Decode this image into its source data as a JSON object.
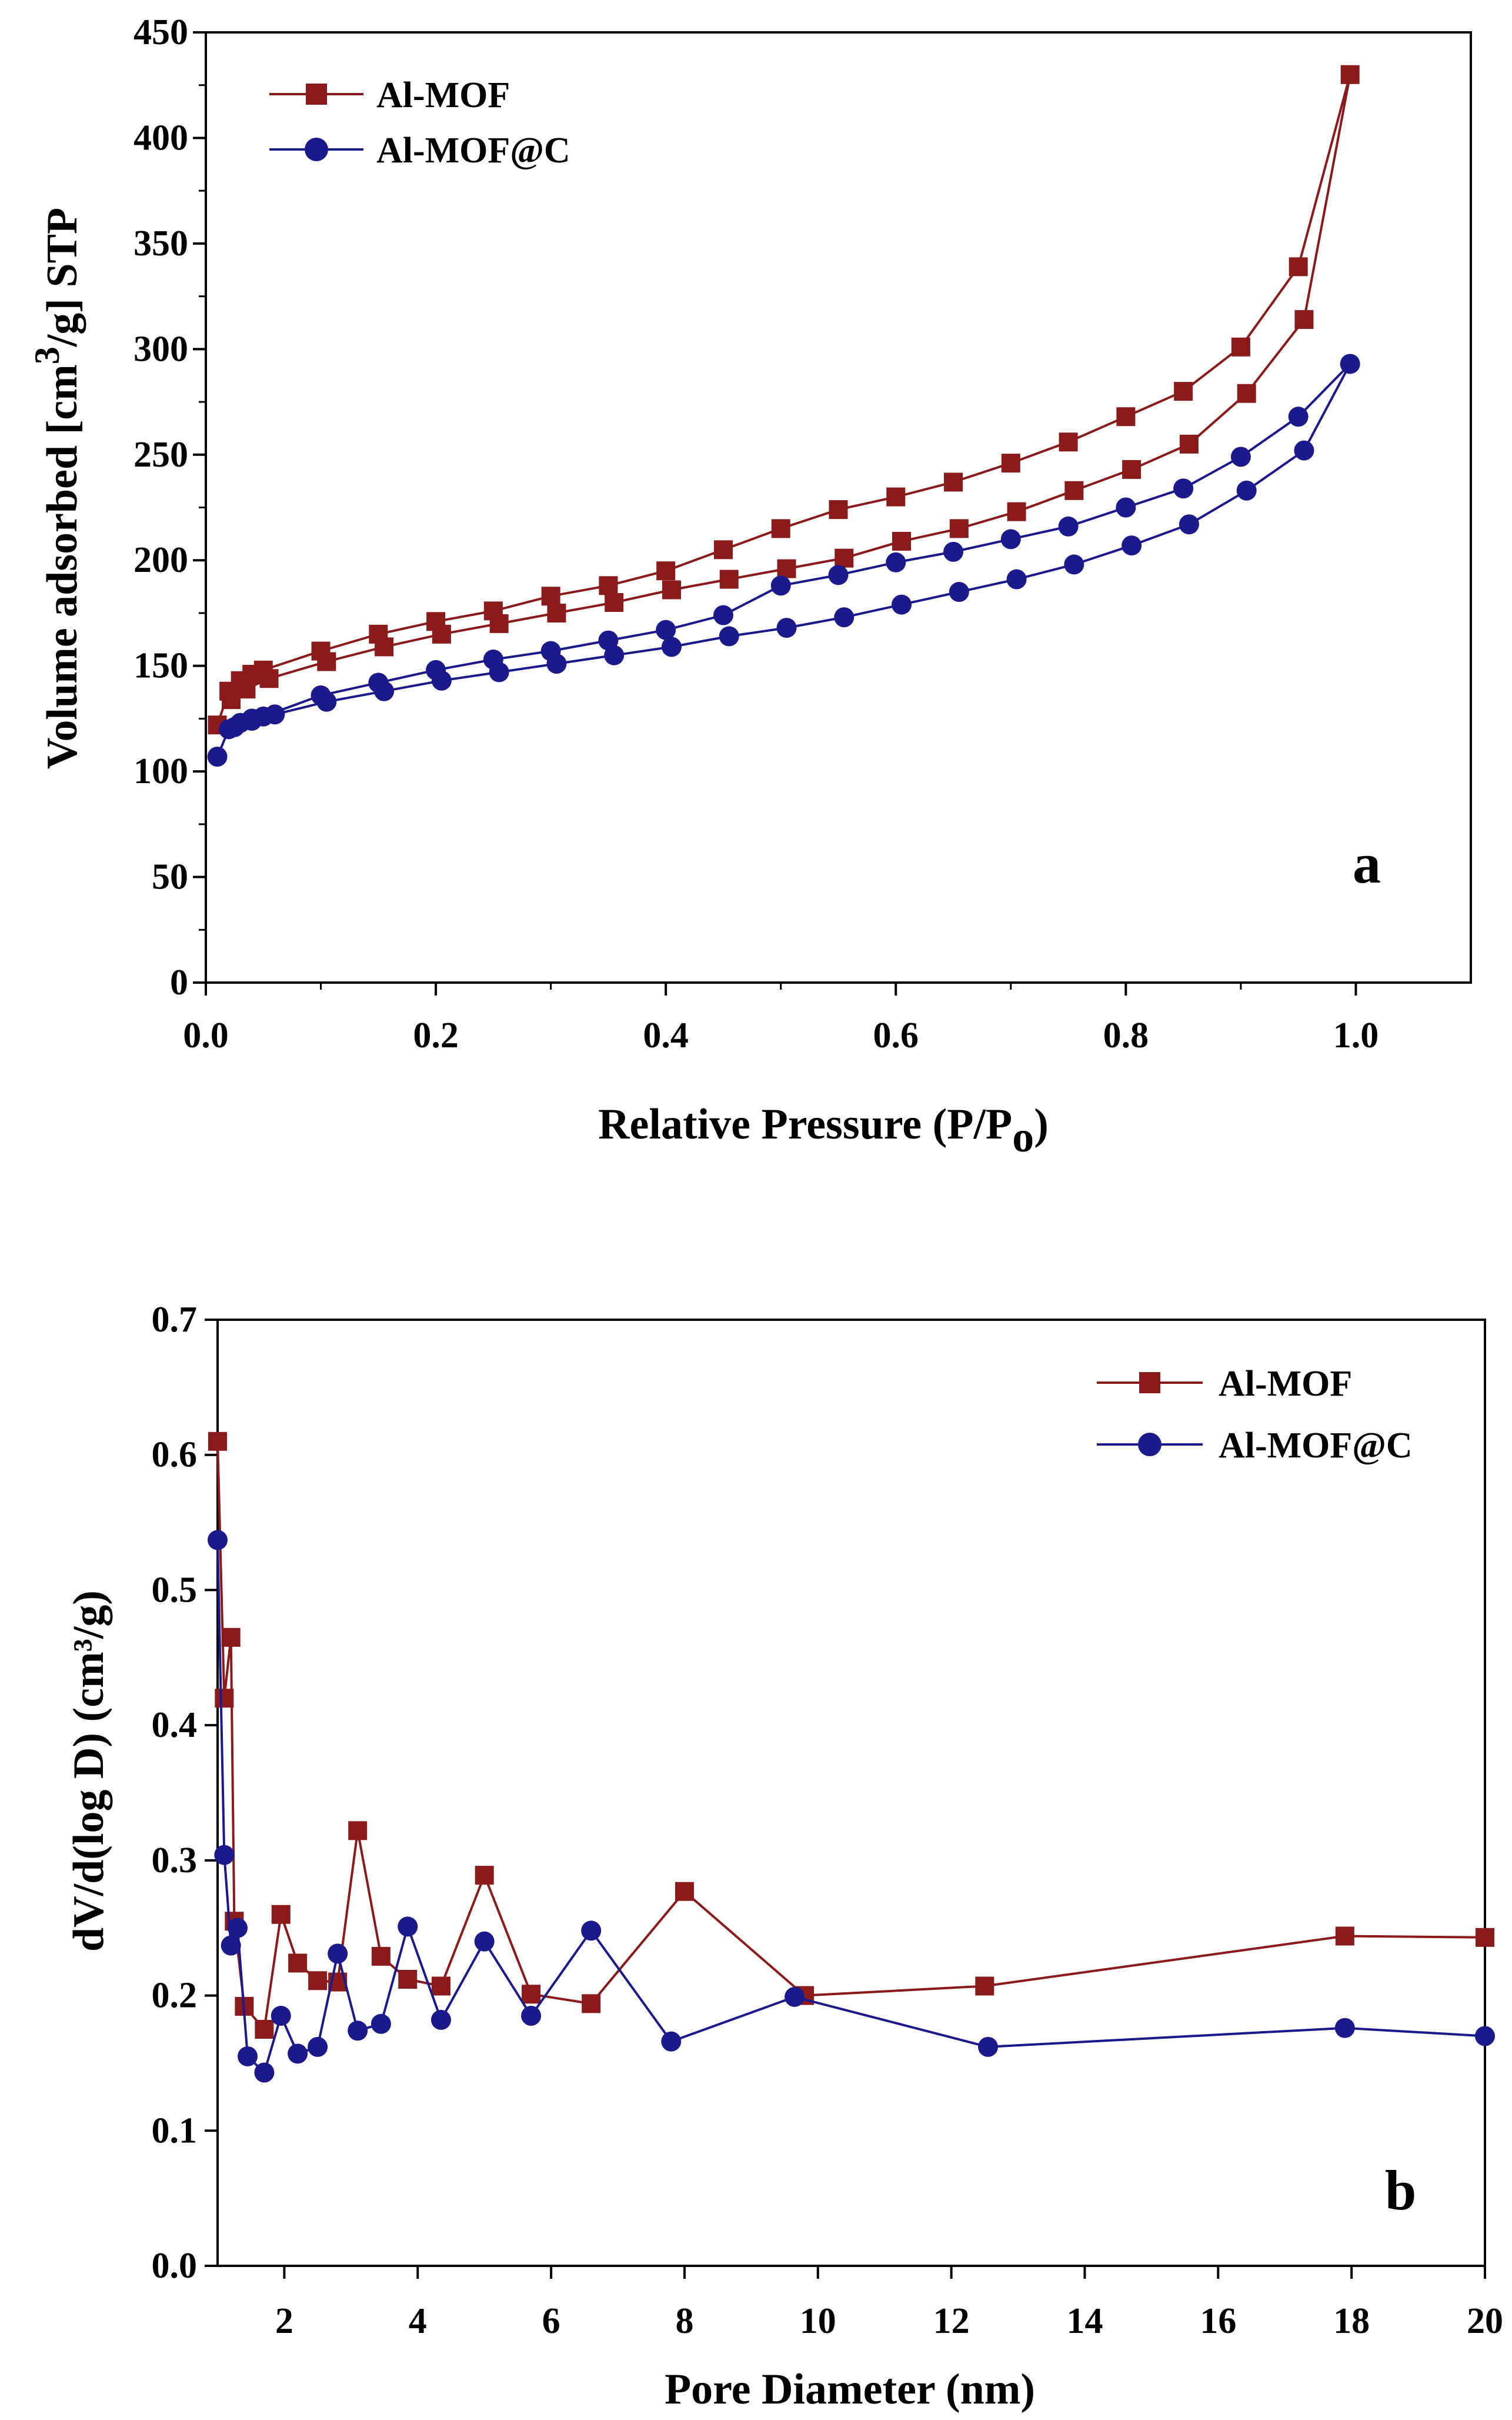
{
  "chart_data": [
    {
      "type": "line",
      "panel_label": "a",
      "xlabel": "Relative Pressure (P/P",
      "xlabel_sub": "o",
      "xlabel_close": ")",
      "ylabel": "Volume adsorbed [cm",
      "ylabel_sup": "3",
      "ylabel_rest": "/g] STP",
      "xlim": [
        0.0,
        1.1
      ],
      "ylim": [
        0,
        450
      ],
      "x_ticks": [
        0.0,
        0.2,
        0.4,
        0.6,
        0.8,
        1.0
      ],
      "x_tick_labels": [
        "0.0",
        "0.2",
        "0.4",
        "0.6",
        "0.8",
        "1.0"
      ],
      "y_ticks": [
        0,
        50,
        100,
        150,
        200,
        250,
        300,
        350,
        400,
        450
      ],
      "y_tick_labels": [
        "0",
        "50",
        "100",
        "150",
        "200",
        "250",
        "300",
        "350",
        "400",
        "450"
      ],
      "legend": [
        "Al-MOF",
        "Al-MOF@C"
      ],
      "legend_position": "top-left",
      "series": [
        {
          "name": "Al-MOF",
          "color": "#8B1A1A",
          "marker": "square",
          "x": [
            0.01,
            0.02,
            0.03,
            0.04,
            0.05,
            0.1,
            0.15,
            0.2,
            0.25,
            0.3,
            0.35,
            0.4,
            0.45,
            0.5,
            0.55,
            0.6,
            0.65,
            0.7,
            0.75,
            0.8,
            0.85,
            0.9,
            0.95,
            0.995,
            0.955,
            0.905,
            0.855,
            0.805,
            0.755,
            0.705,
            0.655,
            0.605,
            0.555,
            0.505,
            0.455,
            0.405,
            0.355,
            0.305,
            0.255,
            0.205,
            0.155,
            0.105,
            0.055,
            0.035,
            0.022
          ],
          "y": [
            122,
            138,
            143,
            146,
            148,
            157,
            165,
            171,
            176,
            183,
            188,
            195,
            205,
            215,
            224,
            230,
            237,
            246,
            256,
            268,
            280,
            301,
            339,
            430,
            314,
            279,
            255,
            243,
            233,
            223,
            215,
            209,
            201,
            196,
            191,
            186,
            180,
            175,
            170,
            165,
            159,
            152,
            144,
            139,
            134
          ]
        },
        {
          "name": "Al-MOF@C",
          "color": "#1A1A8C",
          "marker": "circle",
          "x": [
            0.01,
            0.02,
            0.03,
            0.04,
            0.05,
            0.1,
            0.15,
            0.2,
            0.25,
            0.3,
            0.35,
            0.4,
            0.45,
            0.5,
            0.55,
            0.6,
            0.65,
            0.7,
            0.75,
            0.8,
            0.85,
            0.9,
            0.95,
            0.995,
            0.955,
            0.905,
            0.855,
            0.805,
            0.755,
            0.705,
            0.655,
            0.605,
            0.555,
            0.505,
            0.455,
            0.405,
            0.355,
            0.305,
            0.255,
            0.205,
            0.155,
            0.105,
            0.06,
            0.04,
            0.025
          ],
          "y": [
            107,
            120,
            123,
            125,
            126,
            136,
            142,
            148,
            153,
            157,
            162,
            167,
            174,
            188,
            193,
            199,
            204,
            210,
            216,
            225,
            234,
            249,
            268,
            293,
            252,
            233,
            217,
            207,
            198,
            191,
            185,
            179,
            173,
            168,
            164,
            159,
            155,
            151,
            147,
            143,
            138,
            133,
            127,
            124,
            121
          ]
        }
      ]
    },
    {
      "type": "line",
      "panel_label": "b",
      "xlabel": "Pore Diameter (nm)",
      "ylabel": "dV/d(log D) (cm³/g)",
      "xlim": [
        1,
        20
      ],
      "ylim": [
        0.0,
        0.7
      ],
      "x_ticks": [
        2,
        4,
        6,
        8,
        10,
        12,
        14,
        16,
        18,
        20
      ],
      "x_tick_labels": [
        "2",
        "4",
        "6",
        "8",
        "10",
        "12",
        "14",
        "16",
        "18",
        "20"
      ],
      "y_ticks": [
        0.0,
        0.1,
        0.2,
        0.3,
        0.4,
        0.5,
        0.6,
        0.7
      ],
      "y_tick_labels": [
        "0.0",
        "0.1",
        "0.2",
        "0.3",
        "0.4",
        "0.5",
        "0.6",
        "0.7"
      ],
      "legend": [
        "Al-MOF",
        "Al-MOF@C"
      ],
      "legend_position": "top-right",
      "series": [
        {
          "name": "Al-MOF",
          "color": "#8B1A1A",
          "marker": "square",
          "x": [
            1.0,
            1.1,
            1.2,
            1.25,
            1.4,
            1.7,
            1.95,
            2.2,
            2.5,
            2.8,
            3.1,
            3.45,
            3.85,
            4.35,
            5.0,
            5.7,
            6.6,
            8.0,
            9.8,
            12.5,
            17.9,
            20.0
          ],
          "y": [
            0.61,
            0.42,
            0.465,
            0.255,
            0.192,
            0.175,
            0.26,
            0.224,
            0.211,
            0.21,
            0.322,
            0.229,
            0.212,
            0.207,
            0.289,
            0.201,
            0.194,
            0.277,
            0.2,
            0.207,
            0.244,
            0.243
          ]
        },
        {
          "name": "Al-MOF@C",
          "color": "#1A1A8C",
          "marker": "circle",
          "x": [
            1.0,
            1.1,
            1.2,
            1.3,
            1.45,
            1.7,
            1.95,
            2.2,
            2.5,
            2.8,
            3.1,
            3.45,
            3.85,
            4.35,
            5.0,
            5.7,
            6.6,
            7.8,
            9.65,
            12.55,
            17.9,
            20.0
          ],
          "y": [
            0.537,
            0.304,
            0.237,
            0.25,
            0.155,
            0.143,
            0.185,
            0.157,
            0.162,
            0.231,
            0.174,
            0.179,
            0.251,
            0.182,
            0.24,
            0.185,
            0.248,
            0.166,
            0.199,
            0.162,
            0.176,
            0.17
          ]
        }
      ]
    }
  ]
}
